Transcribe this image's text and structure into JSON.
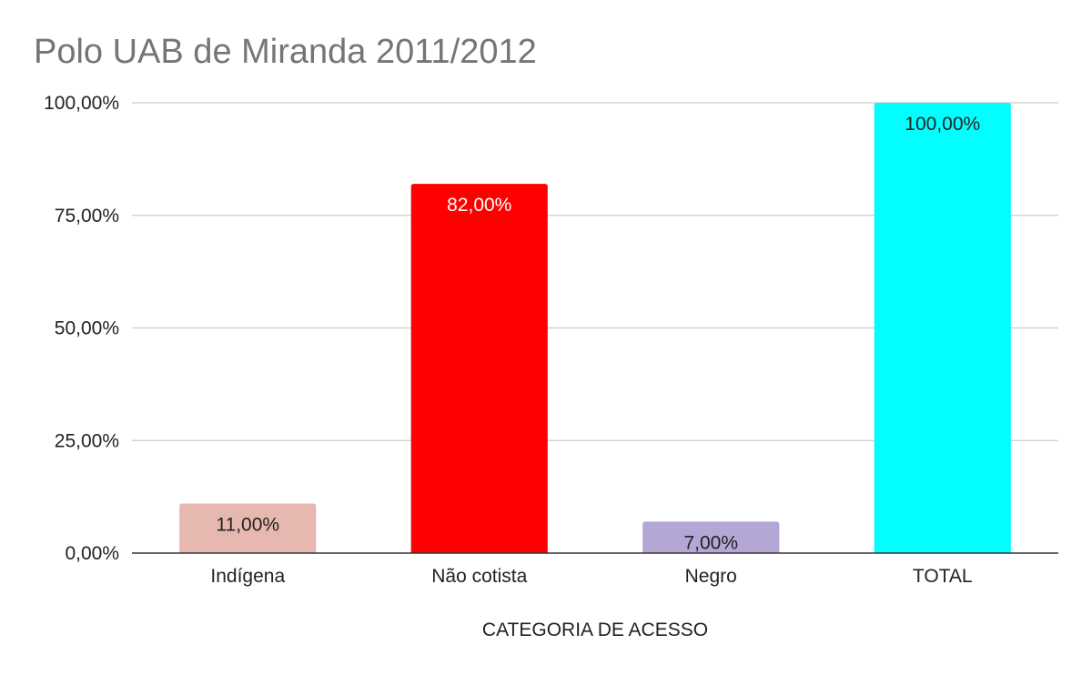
{
  "chart_data": {
    "type": "bar",
    "title": "Polo UAB de Miranda 2011/2012",
    "xlabel": "CATEGORIA DE ACESSO",
    "ylabel": "",
    "categories": [
      "Indígena",
      "Não cotista",
      "Negro",
      "TOTAL"
    ],
    "values": [
      11,
      82,
      7,
      100
    ],
    "data_labels": [
      "11,00%",
      "82,00%",
      "7,00%",
      "100,00%"
    ],
    "bar_colors": [
      "#e6b8af",
      "#ff0000",
      "#b4a7d6",
      "#00ffff"
    ],
    "label_colors": [
      "#222222",
      "#ffffff",
      "#222222",
      "#222222"
    ],
    "y_ticks": [
      0,
      25,
      50,
      75,
      100
    ],
    "y_tick_labels": [
      "0,00%",
      "25,00%",
      "50,00%",
      "75,00%",
      "100,00%"
    ],
    "ylim": [
      0,
      100
    ],
    "grid": true,
    "legend": "none"
  }
}
